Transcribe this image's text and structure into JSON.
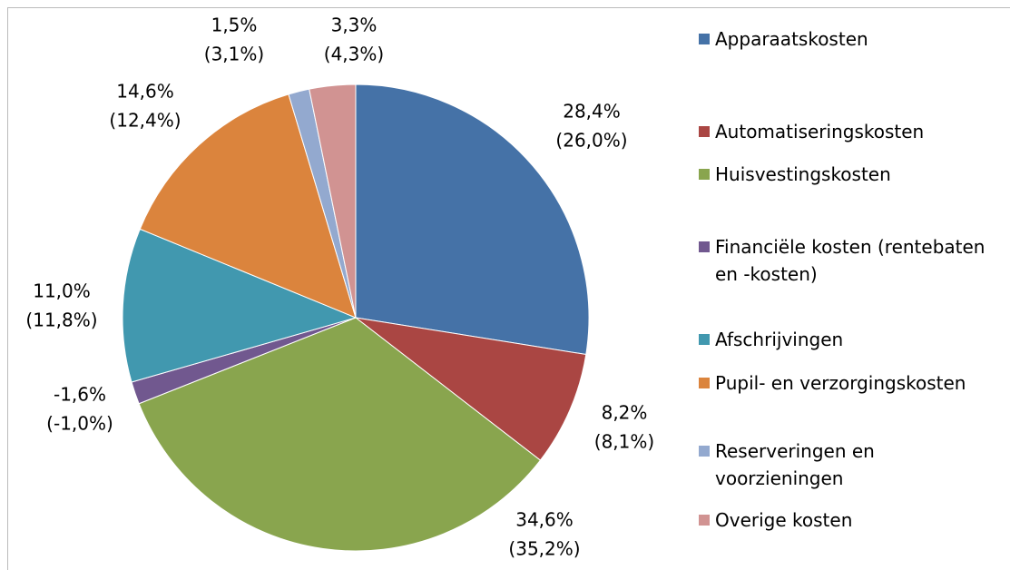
{
  "chart_data": {
    "type": "pie",
    "categories": [
      "Apparaatskosten",
      "Automatiseringskosten",
      "Huisvestingskosten",
      "Financiële kosten (rentebaten en -kosten)",
      "Afschrijvingen",
      "Pupil- en verzorgingskosten",
      "Reserveringen en voorzieningen",
      "Overige kosten"
    ],
    "values": [
      28.4,
      8.2,
      34.6,
      -1.6,
      11.0,
      14.6,
      1.5,
      3.3
    ],
    "value_labels": [
      "28,4%",
      "8,2%",
      "34,6%",
      "-1,6%",
      "11,0%",
      "14,6%",
      "1,5%",
      "3,3%"
    ],
    "secondary_values": [
      26.0,
      8.1,
      35.2,
      -1.0,
      11.8,
      12.4,
      3.1,
      4.3
    ],
    "secondary_labels": [
      "(26,0%)",
      "(8,1%)",
      "(35,2%)",
      "(-1,0%)",
      "(11,8%)",
      "(12,4%)",
      "(3,1%)",
      "(4,3%)"
    ],
    "colors": [
      "#4572a7",
      "#aa4643",
      "#89a54e",
      "#71588f",
      "#4198af",
      "#db843d",
      "#93a9cf",
      "#d19392"
    ],
    "legend": "right"
  }
}
